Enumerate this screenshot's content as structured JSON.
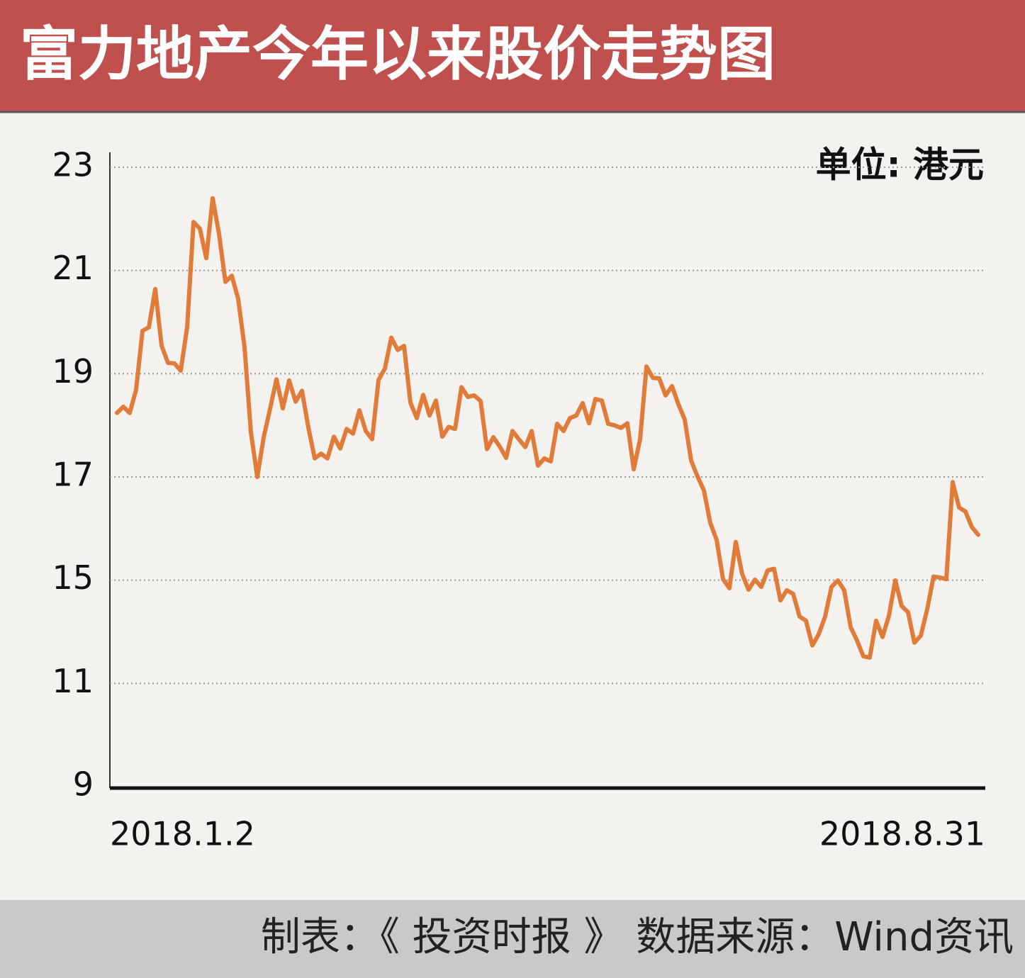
{
  "chart_data": {
    "type": "line",
    "title": "富力地产今年以来股价走势图",
    "unit": "单位: 港元",
    "footer": "制表：《 投资时报 》  数据来源：Wind资讯",
    "categories": [
      "2018.1.2",
      null,
      null,
      null,
      null,
      null,
      null,
      null,
      null,
      null,
      null,
      null,
      null,
      null,
      null,
      null,
      null,
      null,
      null,
      null,
      null,
      null,
      null,
      null,
      null,
      null,
      null,
      null,
      null,
      null,
      null,
      null,
      null,
      null,
      null,
      null,
      null,
      null,
      null,
      null,
      null,
      null,
      null,
      null,
      null,
      null,
      null,
      null,
      null,
      null,
      null,
      null,
      null,
      null,
      null,
      null,
      null,
      null,
      null,
      null,
      null,
      null,
      null,
      null,
      null,
      null,
      null,
      null,
      null,
      null,
      null,
      null,
      null,
      null,
      null,
      null,
      null,
      null,
      null,
      null,
      null,
      null,
      null,
      null,
      null,
      null,
      null,
      null,
      null,
      null,
      null,
      null,
      null,
      null,
      null,
      null,
      null,
      null,
      null,
      null,
      null,
      null,
      null,
      null,
      null,
      null,
      null,
      null,
      null,
      null,
      null,
      null,
      null,
      null,
      null,
      null,
      null,
      null,
      null,
      null,
      null,
      null,
      null,
      null,
      null,
      null,
      null,
      null,
      null,
      null,
      null,
      null,
      null,
      null,
      null,
      "2018.8.31"
    ],
    "series": [
      {
        "name": "富力地产",
        "color": "#e07b39",
        "values": [
          18.24,
          18.36,
          18.24,
          18.69,
          19.83,
          19.9,
          20.64,
          19.54,
          19.21,
          19.2,
          19.06,
          19.9,
          21.94,
          21.81,
          21.24,
          22.4,
          21.71,
          20.78,
          20.9,
          20.45,
          19.51,
          17.86,
          17.0,
          17.77,
          18.32,
          18.89,
          18.33,
          18.87,
          18.46,
          18.67,
          17.96,
          17.36,
          17.45,
          17.36,
          17.78,
          17.55,
          17.93,
          17.84,
          18.29,
          17.89,
          17.73,
          18.88,
          19.1,
          19.7,
          19.46,
          19.54,
          18.44,
          18.14,
          18.59,
          18.19,
          18.48,
          17.78,
          17.97,
          17.93,
          18.74,
          18.55,
          18.58,
          18.47,
          17.54,
          17.77,
          17.59,
          17.37,
          17.89,
          17.73,
          17.58,
          17.89,
          17.22,
          17.36,
          17.3,
          18.03,
          17.89,
          18.14,
          18.19,
          18.43,
          18.04,
          18.51,
          18.48,
          18.03,
          18.0,
          17.95,
          18.04,
          17.15,
          17.73,
          19.14,
          18.92,
          18.91,
          18.58,
          18.76,
          18.41,
          18.11,
          17.32,
          17.01,
          16.74,
          16.11,
          15.78,
          15.02,
          14.69,
          15.74,
          15.12,
          14.63,
          15.01,
          14.74,
          15.19,
          15.22,
          14.22,
          14.61,
          14.47,
          13.59,
          13.43,
          12.47,
          12.91,
          13.59,
          14.74,
          14.99,
          14.61,
          13.18,
          12.66,
          12.05,
          12.0,
          13.43,
          12.8,
          13.62,
          14.99,
          14.0,
          13.76,
          12.58,
          12.85,
          13.87,
          15.07,
          15.05,
          15.02,
          16.9,
          16.41,
          16.33,
          16.03,
          15.88
        ]
      }
    ],
    "ylim": [
      9,
      23
    ],
    "yticks": [
      23,
      21,
      19,
      17,
      15,
      11,
      9
    ],
    "grid": true
  }
}
